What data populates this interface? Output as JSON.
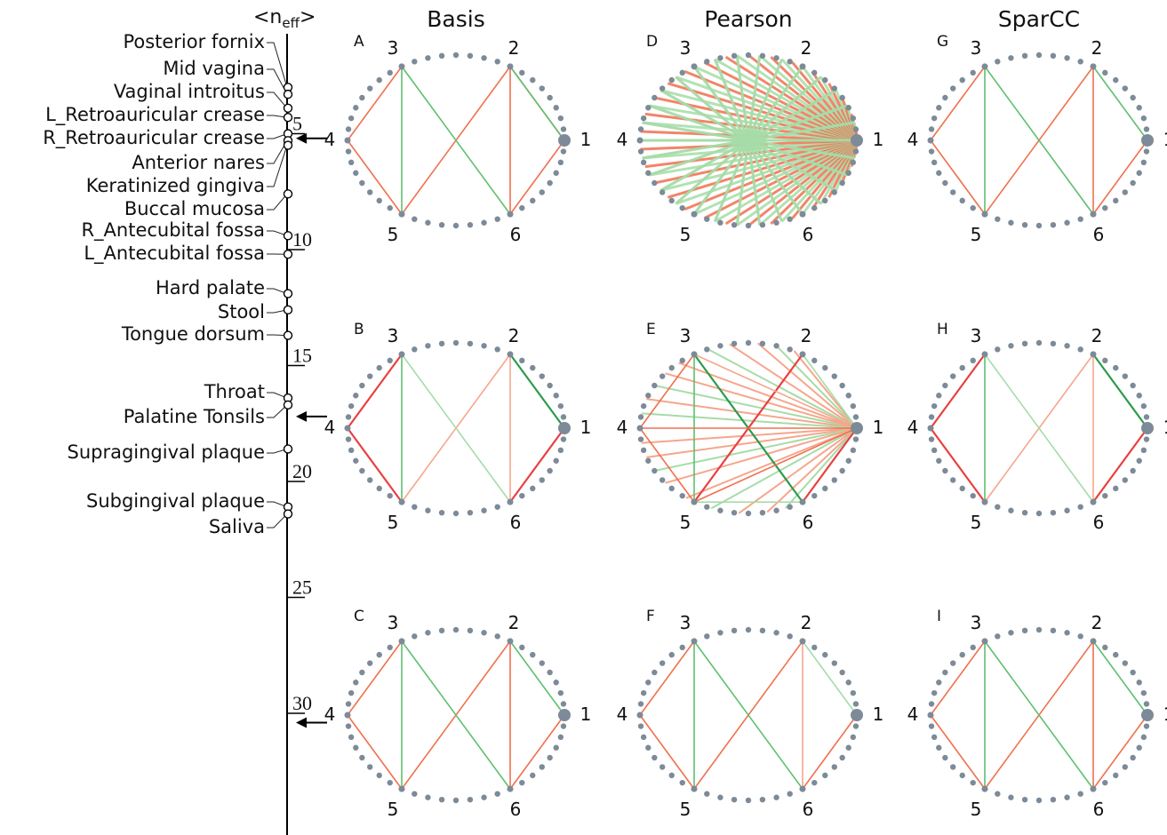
{
  "axis": {
    "label_main": "<n",
    "label_sub": "eff",
    "label_close": ">",
    "ticks": [
      {
        "value": 5,
        "label": "5"
      },
      {
        "value": 10,
        "label": "10"
      },
      {
        "value": 15,
        "label": "15"
      },
      {
        "value": 20,
        "label": "20"
      },
      {
        "value": 25,
        "label": "25"
      },
      {
        "value": 30,
        "label": "30"
      }
    ],
    "arrows_at": [
      5.2,
      17.2,
      30.4
    ]
  },
  "sites": [
    {
      "label": "Posterior fornix",
      "value": 3.0
    },
    {
      "label": "Mid vagina",
      "value": 3.3
    },
    {
      "label": "Vaginal introitus",
      "value": 3.9
    },
    {
      "label": "L_Retroauricular crease",
      "value": 4.3
    },
    {
      "label": "R_Retroauricular crease",
      "value": 5.0
    },
    {
      "label": "Anterior nares",
      "value": 5.3
    },
    {
      "label": "Keratinized gingiva",
      "value": 5.5
    },
    {
      "label": "Buccal mucosa",
      "value": 7.6
    },
    {
      "label": "R_Antecubital fossa",
      "value": 9.4
    },
    {
      "label": "L_Antecubital fossa",
      "value": 10.2
    },
    {
      "label": "Hard palate",
      "value": 11.9
    },
    {
      "label": "Stool",
      "value": 12.6
    },
    {
      "label": "Tongue dorsum",
      "value": 13.7
    },
    {
      "label": "Throat",
      "value": 16.4
    },
    {
      "label": "Palatine Tonsils",
      "value": 16.7
    },
    {
      "label": "Supragingival plaque",
      "value": 18.6
    },
    {
      "label": "Subgingival plaque",
      "value": 21.1
    },
    {
      "label": "Saliva",
      "value": 21.4
    }
  ],
  "columns": [
    {
      "title": "Basis"
    },
    {
      "title": "Pearson"
    },
    {
      "title": "SparCC"
    }
  ],
  "node_labels": [
    "1",
    "2",
    "3",
    "4",
    "5",
    "6"
  ],
  "colors": {
    "dot": "#7d8a98",
    "positive": "#5fbf6f",
    "positive_light": "#a6dca8",
    "positive_dark": "#2c9b4c",
    "negative": "#f0704f",
    "negative_light": "#f6a68c",
    "negative_dark": "#e84040",
    "axis": "#000000"
  },
  "panels": [
    {
      "label": "A",
      "row": 0,
      "col": 0,
      "edges": [
        {
          "a": 1,
          "b": 2,
          "sign": "neg",
          "shade": "mid"
        },
        {
          "a": 1,
          "b": 6,
          "sign": "neg",
          "shade": "mid"
        },
        {
          "a": 2,
          "b": 6,
          "sign": "neg",
          "shade": "mid"
        },
        {
          "a": 2,
          "b": 5,
          "sign": "neg",
          "shade": "mid"
        },
        {
          "a": 3,
          "b": 4,
          "sign": "neg",
          "shade": "mid"
        },
        {
          "a": 4,
          "b": 5,
          "sign": "neg",
          "shade": "mid"
        },
        {
          "a": 3,
          "b": 5,
          "sign": "pos",
          "shade": "mid"
        },
        {
          "a": 3,
          "b": 6,
          "sign": "pos",
          "shade": "mid"
        },
        {
          "a": 1,
          "b": 2,
          "sign": "pos",
          "shade": "mid"
        }
      ]
    },
    {
      "label": "B",
      "row": 1,
      "col": 0,
      "edges": [
        {
          "a": 1,
          "b": 2,
          "sign": "pos",
          "shade": "dark"
        },
        {
          "a": 1,
          "b": 6,
          "sign": "neg",
          "shade": "dark"
        },
        {
          "a": 2,
          "b": 6,
          "sign": "neg",
          "shade": "light"
        },
        {
          "a": 2,
          "b": 5,
          "sign": "neg",
          "shade": "light"
        },
        {
          "a": 3,
          "b": 4,
          "sign": "neg",
          "shade": "dark"
        },
        {
          "a": 4,
          "b": 5,
          "sign": "neg",
          "shade": "dark"
        },
        {
          "a": 3,
          "b": 5,
          "sign": "pos",
          "shade": "mid"
        },
        {
          "a": 3,
          "b": 6,
          "sign": "pos",
          "shade": "light"
        }
      ]
    },
    {
      "label": "C",
      "row": 2,
      "col": 0,
      "edges": [
        {
          "a": 1,
          "b": 2,
          "sign": "pos",
          "shade": "mid"
        },
        {
          "a": 1,
          "b": 6,
          "sign": "neg",
          "shade": "mid"
        },
        {
          "a": 2,
          "b": 6,
          "sign": "neg",
          "shade": "mid"
        },
        {
          "a": 2,
          "b": 5,
          "sign": "neg",
          "shade": "mid"
        },
        {
          "a": 3,
          "b": 4,
          "sign": "neg",
          "shade": "mid"
        },
        {
          "a": 4,
          "b": 5,
          "sign": "neg",
          "shade": "mid"
        },
        {
          "a": 3,
          "b": 5,
          "sign": "pos",
          "shade": "mid"
        },
        {
          "a": 3,
          "b": 6,
          "sign": "pos",
          "shade": "mid"
        }
      ]
    },
    {
      "label": "D",
      "row": 0,
      "col": 1,
      "dense": "full",
      "edges": []
    },
    {
      "label": "E",
      "row": 1,
      "col": 1,
      "dense": "partial",
      "edges": [
        {
          "a": 3,
          "b": 5,
          "sign": "pos",
          "shade": "mid"
        },
        {
          "a": 3,
          "b": 6,
          "sign": "pos",
          "shade": "dark"
        },
        {
          "a": 4,
          "b": 5,
          "sign": "neg",
          "shade": "mid"
        },
        {
          "a": 3,
          "b": 4,
          "sign": "neg",
          "shade": "mid"
        },
        {
          "a": 1,
          "b": 6,
          "sign": "neg",
          "shade": "dark"
        },
        {
          "a": 2,
          "b": 5,
          "sign": "neg",
          "shade": "dark"
        },
        {
          "a": 5,
          "b": 6,
          "sign": "pos",
          "shade": "light"
        },
        {
          "a": 1,
          "b": 3,
          "sign": "neg",
          "shade": "light"
        },
        {
          "a": 1,
          "b": 5,
          "sign": "neg",
          "shade": "mid"
        },
        {
          "a": 1,
          "b": 4,
          "sign": "neg",
          "shade": "mid"
        },
        {
          "a": 1,
          "b": 2,
          "sign": "pos",
          "shade": "light"
        }
      ]
    },
    {
      "label": "F",
      "row": 2,
      "col": 1,
      "edges": [
        {
          "a": 1,
          "b": 2,
          "sign": "pos",
          "shade": "light"
        },
        {
          "a": 1,
          "b": 6,
          "sign": "neg",
          "shade": "mid"
        },
        {
          "a": 2,
          "b": 6,
          "sign": "neg",
          "shade": "light"
        },
        {
          "a": 2,
          "b": 5,
          "sign": "neg",
          "shade": "mid"
        },
        {
          "a": 3,
          "b": 4,
          "sign": "neg",
          "shade": "mid"
        },
        {
          "a": 4,
          "b": 5,
          "sign": "neg",
          "shade": "mid"
        },
        {
          "a": 3,
          "b": 5,
          "sign": "pos",
          "shade": "mid"
        },
        {
          "a": 3,
          "b": 6,
          "sign": "pos",
          "shade": "mid"
        }
      ]
    },
    {
      "label": "G",
      "row": 0,
      "col": 2,
      "edges": [
        {
          "a": 1,
          "b": 2,
          "sign": "pos",
          "shade": "mid"
        },
        {
          "a": 1,
          "b": 6,
          "sign": "neg",
          "shade": "mid"
        },
        {
          "a": 2,
          "b": 6,
          "sign": "neg",
          "shade": "mid"
        },
        {
          "a": 2,
          "b": 5,
          "sign": "neg",
          "shade": "mid"
        },
        {
          "a": 3,
          "b": 4,
          "sign": "neg",
          "shade": "mid"
        },
        {
          "a": 4,
          "b": 5,
          "sign": "neg",
          "shade": "mid"
        },
        {
          "a": 3,
          "b": 5,
          "sign": "pos",
          "shade": "mid"
        },
        {
          "a": 3,
          "b": 6,
          "sign": "pos",
          "shade": "mid"
        }
      ]
    },
    {
      "label": "H",
      "row": 1,
      "col": 2,
      "edges": [
        {
          "a": 1,
          "b": 2,
          "sign": "pos",
          "shade": "dark"
        },
        {
          "a": 1,
          "b": 6,
          "sign": "neg",
          "shade": "dark"
        },
        {
          "a": 2,
          "b": 6,
          "sign": "neg",
          "shade": "light"
        },
        {
          "a": 2,
          "b": 5,
          "sign": "neg",
          "shade": "light"
        },
        {
          "a": 3,
          "b": 4,
          "sign": "neg",
          "shade": "dark"
        },
        {
          "a": 4,
          "b": 5,
          "sign": "neg",
          "shade": "dark"
        },
        {
          "a": 3,
          "b": 5,
          "sign": "pos",
          "shade": "mid"
        },
        {
          "a": 3,
          "b": 6,
          "sign": "pos",
          "shade": "light"
        }
      ]
    },
    {
      "label": "I",
      "row": 2,
      "col": 2,
      "edges": [
        {
          "a": 1,
          "b": 2,
          "sign": "pos",
          "shade": "mid"
        },
        {
          "a": 1,
          "b": 6,
          "sign": "neg",
          "shade": "mid"
        },
        {
          "a": 2,
          "b": 6,
          "sign": "neg",
          "shade": "mid"
        },
        {
          "a": 2,
          "b": 5,
          "sign": "neg",
          "shade": "mid"
        },
        {
          "a": 3,
          "b": 4,
          "sign": "neg",
          "shade": "mid"
        },
        {
          "a": 4,
          "b": 5,
          "sign": "neg",
          "shade": "mid"
        },
        {
          "a": 3,
          "b": 5,
          "sign": "pos",
          "shade": "mid"
        },
        {
          "a": 3,
          "b": 6,
          "sign": "pos",
          "shade": "mid"
        }
      ]
    }
  ]
}
